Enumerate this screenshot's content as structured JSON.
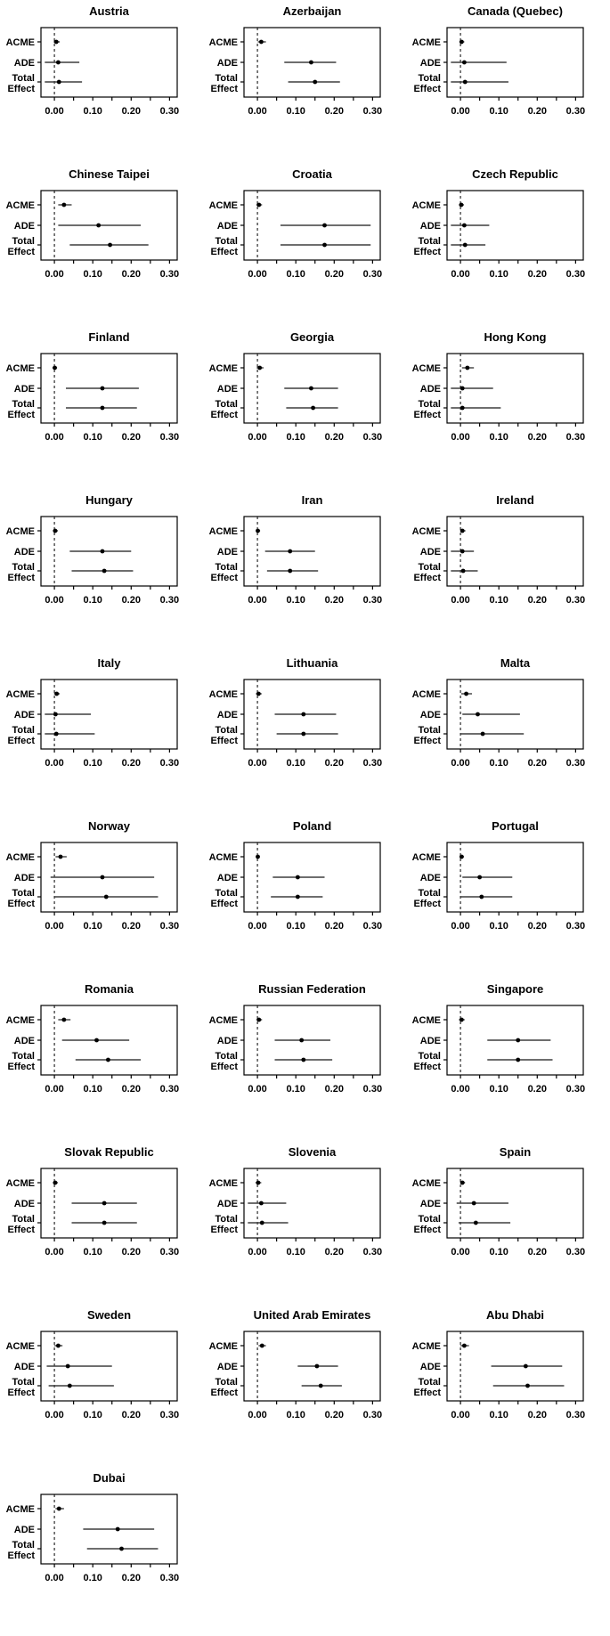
{
  "figure": {
    "colors": {
      "background": "#ffffff",
      "text": "#000000",
      "frame": "#000000",
      "ci_line": "#3f3f3f",
      "point": "#000000",
      "reference_line": "#000000"
    }
  },
  "chart_data": {
    "type": "scatter",
    "subtype": "forest_plot_small_multiples",
    "grid_columns": 3,
    "categories": [
      "ACME",
      "ADE",
      "Total Effect"
    ],
    "category_axis_labels": [
      [
        "ACME"
      ],
      [
        "ADE"
      ],
      [
        "Total",
        "Effect"
      ]
    ],
    "xlim": [
      -0.035,
      0.32
    ],
    "x_minor_ticks": [
      0.0,
      0.05,
      0.1,
      0.15,
      0.2,
      0.25,
      0.3
    ],
    "x_major_ticks": [
      0.0,
      0.1,
      0.2,
      0.3
    ],
    "x_tick_labels": [
      "0.00",
      "0.10",
      "0.20",
      "0.30"
    ],
    "reference_line_x": 0,
    "legend": "none",
    "gridlines": "off",
    "value_format": "[estimate, ci_low, ci_high]",
    "panels": [
      {
        "title": "Austria",
        "values": [
          [
            0.005,
            -0.002,
            0.014
          ],
          [
            0.01,
            -0.025,
            0.065
          ],
          [
            0.012,
            -0.025,
            0.072
          ]
        ]
      },
      {
        "title": "Azerbaijan",
        "values": [
          [
            0.01,
            0.001,
            0.022
          ],
          [
            0.14,
            0.07,
            0.205
          ],
          [
            0.15,
            0.08,
            0.215
          ]
        ]
      },
      {
        "title": "Canada (Quebec)",
        "values": [
          [
            0.003,
            -0.003,
            0.01
          ],
          [
            0.01,
            -0.025,
            0.12
          ],
          [
            0.012,
            -0.025,
            0.125
          ]
        ]
      },
      {
        "title": "Chinese Taipei",
        "values": [
          [
            0.025,
            0.01,
            0.045
          ],
          [
            0.115,
            0.01,
            0.225
          ],
          [
            0.145,
            0.04,
            0.245
          ]
        ]
      },
      {
        "title": "Croatia",
        "values": [
          [
            0.004,
            -0.003,
            0.012
          ],
          [
            0.175,
            0.06,
            0.295
          ],
          [
            0.175,
            0.06,
            0.295
          ]
        ]
      },
      {
        "title": "Czech Republic",
        "values": [
          [
            0.002,
            -0.004,
            0.009
          ],
          [
            0.01,
            -0.025,
            0.075
          ],
          [
            0.012,
            -0.025,
            0.065
          ]
        ]
      },
      {
        "title": "Finland",
        "values": [
          [
            0.001,
            -0.005,
            0.007
          ],
          [
            0.125,
            0.03,
            0.22
          ],
          [
            0.125,
            0.03,
            0.215
          ]
        ]
      },
      {
        "title": "Georgia",
        "values": [
          [
            0.006,
            -0.002,
            0.016
          ],
          [
            0.14,
            0.07,
            0.21
          ],
          [
            0.145,
            0.075,
            0.21
          ]
        ]
      },
      {
        "title": "Hong Kong",
        "values": [
          [
            0.018,
            0.004,
            0.035
          ],
          [
            0.005,
            -0.025,
            0.085
          ],
          [
            0.005,
            -0.025,
            0.105
          ]
        ]
      },
      {
        "title": "Hungary",
        "values": [
          [
            0.002,
            -0.004,
            0.009
          ],
          [
            0.125,
            0.04,
            0.2
          ],
          [
            0.13,
            0.045,
            0.205
          ]
        ]
      },
      {
        "title": "Iran",
        "values": [
          [
            0.001,
            -0.004,
            0.007
          ],
          [
            0.085,
            0.02,
            0.15
          ],
          [
            0.085,
            0.025,
            0.158
          ]
        ]
      },
      {
        "title": "Ireland",
        "values": [
          [
            0.005,
            -0.001,
            0.013
          ],
          [
            0.005,
            -0.025,
            0.035
          ],
          [
            0.007,
            -0.025,
            0.045
          ]
        ]
      },
      {
        "title": "Italy",
        "values": [
          [
            0.006,
            -0.001,
            0.014
          ],
          [
            0.003,
            -0.025,
            0.095
          ],
          [
            0.005,
            -0.025,
            0.105
          ]
        ]
      },
      {
        "title": "Lithuania",
        "values": [
          [
            0.003,
            -0.004,
            0.011
          ],
          [
            0.12,
            0.045,
            0.205
          ],
          [
            0.12,
            0.05,
            0.21
          ]
        ]
      },
      {
        "title": "Malta",
        "values": [
          [
            0.015,
            0.002,
            0.03
          ],
          [
            0.045,
            0.005,
            0.155
          ],
          [
            0.058,
            0.0,
            0.165
          ]
        ]
      },
      {
        "title": "Norway",
        "values": [
          [
            0.016,
            0.003,
            0.032
          ],
          [
            0.125,
            -0.01,
            0.26
          ],
          [
            0.135,
            0.0,
            0.27
          ]
        ]
      },
      {
        "title": "Poland",
        "values": [
          [
            0.001,
            -0.004,
            0.006
          ],
          [
            0.105,
            0.04,
            0.175
          ],
          [
            0.105,
            0.035,
            0.17
          ]
        ]
      },
      {
        "title": "Portugal",
        "values": [
          [
            0.003,
            -0.002,
            0.009
          ],
          [
            0.05,
            0.005,
            0.135
          ],
          [
            0.055,
            0.0,
            0.135
          ]
        ]
      },
      {
        "title": "Romania",
        "values": [
          [
            0.025,
            0.01,
            0.042
          ],
          [
            0.11,
            0.02,
            0.195
          ],
          [
            0.14,
            0.055,
            0.225
          ]
        ]
      },
      {
        "title": "Russian Federation",
        "values": [
          [
            0.004,
            -0.003,
            0.012
          ],
          [
            0.115,
            0.045,
            0.19
          ],
          [
            0.12,
            0.045,
            0.195
          ]
        ]
      },
      {
        "title": "Singapore",
        "values": [
          [
            0.003,
            -0.004,
            0.011
          ],
          [
            0.15,
            0.07,
            0.235
          ],
          [
            0.15,
            0.07,
            0.24
          ]
        ]
      },
      {
        "title": "Slovak Republic",
        "values": [
          [
            0.002,
            -0.004,
            0.009
          ],
          [
            0.13,
            0.045,
            0.215
          ],
          [
            0.13,
            0.045,
            0.215
          ]
        ]
      },
      {
        "title": "Slovenia",
        "values": [
          [
            0.002,
            -0.005,
            0.01
          ],
          [
            0.01,
            -0.025,
            0.075
          ],
          [
            0.012,
            -0.025,
            0.08
          ]
        ]
      },
      {
        "title": "Spain",
        "values": [
          [
            0.005,
            -0.001,
            0.012
          ],
          [
            0.035,
            -0.01,
            0.125
          ],
          [
            0.04,
            -0.005,
            0.13
          ]
        ]
      },
      {
        "title": "Sweden",
        "values": [
          [
            0.01,
            0.0,
            0.021
          ],
          [
            0.035,
            -0.02,
            0.15
          ],
          [
            0.04,
            -0.015,
            0.155
          ]
        ]
      },
      {
        "title": "United Arab Emirates",
        "values": [
          [
            0.012,
            0.003,
            0.022
          ],
          [
            0.155,
            0.105,
            0.21
          ],
          [
            0.165,
            0.115,
            0.22
          ]
        ]
      },
      {
        "title": "Abu Dhabi",
        "values": [
          [
            0.01,
            0.0,
            0.022
          ],
          [
            0.17,
            0.08,
            0.265
          ],
          [
            0.175,
            0.085,
            0.27
          ]
        ]
      },
      {
        "title": "Dubai",
        "values": [
          [
            0.012,
            0.003,
            0.025
          ],
          [
            0.165,
            0.075,
            0.26
          ],
          [
            0.175,
            0.085,
            0.27
          ]
        ]
      }
    ]
  }
}
